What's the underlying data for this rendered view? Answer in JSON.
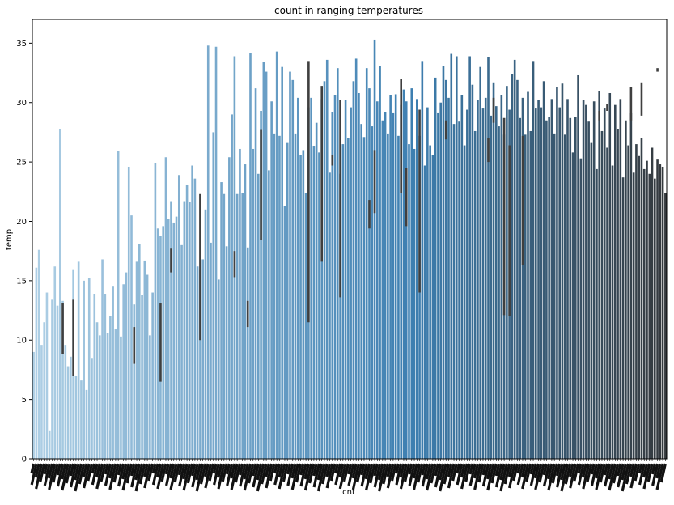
{
  "chart_data": {
    "type": "bar",
    "title": "count in ranging temperatures",
    "xlabel": "cnt",
    "ylabel": "temp",
    "ylim": [
      0,
      37
    ],
    "yticks": [
      0,
      5,
      10,
      15,
      20,
      25,
      30,
      35
    ],
    "grid": false,
    "legend": "none",
    "palette": {
      "light": "#aecfe5",
      "mid": "#3d7fb1",
      "dark": "#35393d"
    },
    "bar_count": 240,
    "x_tick_labels_note": "dense overlapping cnt values, unreadable",
    "values": [
      9.0,
      16.1,
      17.6,
      9.6,
      11.5,
      14.0,
      2.4,
      13.4,
      16.2,
      12.9,
      27.8,
      13.3,
      9.6,
      7.8,
      8.6,
      15.9,
      7.0,
      16.6,
      6.6,
      15.0,
      5.8,
      15.2,
      8.5,
      13.9,
      11.5,
      10.4,
      16.8,
      13.9,
      10.6,
      12.0,
      14.5,
      10.9,
      25.9,
      10.3,
      14.7,
      15.7,
      24.6,
      20.5,
      13.0,
      16.6,
      18.1,
      13.8,
      16.7,
      15.5,
      10.4,
      14.0,
      24.9,
      19.4,
      18.8,
      19.6,
      25.4,
      20.2,
      21.7,
      19.9,
      20.4,
      23.9,
      18.0,
      21.7,
      23.1,
      21.6,
      24.7,
      23.6,
      16.2,
      15.9,
      16.8,
      21.0,
      34.8,
      18.2,
      27.5,
      34.7,
      15.1,
      23.3,
      22.3,
      17.9,
      25.4,
      29.0,
      33.9,
      22.3,
      26.1,
      22.4,
      24.8,
      17.8,
      34.2,
      26.1,
      31.2,
      24.0,
      29.3,
      33.4,
      32.6,
      24.3,
      30.1,
      27.4,
      34.3,
      27.2,
      33.0,
      21.3,
      26.6,
      32.6,
      31.9,
      27.4,
      30.4,
      25.6,
      26.0,
      22.4,
      29.6,
      30.4,
      26.3,
      28.3,
      25.8,
      30.3,
      31.8,
      33.6,
      24.1,
      29.2,
      30.6,
      32.9,
      24.0,
      26.5,
      30.2,
      27.0,
      29.6,
      31.8,
      33.7,
      30.8,
      28.2,
      27.1,
      32.9,
      31.2,
      28.0,
      35.3,
      30.1,
      33.1,
      28.5,
      29.2,
      27.4,
      30.6,
      29.1,
      30.7,
      27.2,
      29.8,
      31.1,
      30.1,
      26.5,
      31.2,
      26.1,
      30.3,
      27.2,
      33.5,
      24.7,
      29.6,
      26.4,
      25.6,
      32.1,
      29.1,
      30.0,
      33.1,
      31.9,
      30.4,
      34.1,
      28.2,
      33.9,
      28.4,
      30.6,
      26.4,
      29.4,
      33.9,
      31.5,
      27.6,
      30.2,
      33.0,
      29.5,
      30.4,
      33.8,
      28.9,
      31.7,
      29.7,
      28.0,
      30.6,
      27.3,
      31.4,
      29.4,
      32.4,
      33.6,
      31.9,
      28.7,
      30.4,
      27.3,
      30.9,
      27.6,
      33.5,
      29.5,
      30.2,
      29.6,
      31.8,
      28.5,
      28.8,
      30.3,
      27.4,
      31.3,
      29.6,
      31.6,
      27.3,
      30.3,
      28.7,
      25.8,
      28.8,
      32.3,
      25.3,
      30.2,
      29.8,
      28.4,
      26.6,
      30.1,
      24.4,
      31.0,
      27.6,
      29.5,
      26.2,
      30.8,
      24.7,
      29.8,
      27.8,
      30.3,
      23.7,
      28.5,
      26.4,
      29.1,
      24.1,
      26.5,
      25.5,
      27.0,
      24.4,
      25.1,
      24.0,
      26.2,
      23.6,
      25.2,
      24.8,
      24.6,
      22.4
    ],
    "errors": [
      {
        "index": 11,
        "low": 8.8,
        "high": 13.1
      },
      {
        "index": 15,
        "low": 7.0,
        "high": 13.4
      },
      {
        "index": 38,
        "low": 8.0,
        "high": 11.1
      },
      {
        "index": 48,
        "low": 6.5,
        "high": 13.1
      },
      {
        "index": 52,
        "low": 15.7,
        "high": 17.7
      },
      {
        "index": 63,
        "low": 10.0,
        "high": 22.3
      },
      {
        "index": 76,
        "low": 15.3,
        "high": 17.5
      },
      {
        "index": 81,
        "low": 11.1,
        "high": 13.3
      },
      {
        "index": 86,
        "low": 18.4,
        "high": 27.7
      },
      {
        "index": 104,
        "low": 11.5,
        "high": 33.5
      },
      {
        "index": 109,
        "low": 16.6,
        "high": 31.4
      },
      {
        "index": 113,
        "low": 24.7,
        "high": 25.6
      },
      {
        "index": 116,
        "low": 13.6,
        "high": 30.2
      },
      {
        "index": 127,
        "low": 19.4,
        "high": 21.8
      },
      {
        "index": 129,
        "low": 20.7,
        "high": 26.0
      },
      {
        "index": 139,
        "low": 22.4,
        "high": 32.0
      },
      {
        "index": 141,
        "low": 19.6,
        "high": 24.5
      },
      {
        "index": 146,
        "low": 14.0,
        "high": 29.4
      },
      {
        "index": 156,
        "low": 26.9,
        "high": 28.5
      },
      {
        "index": 172,
        "low": 25.0,
        "high": 27.0
      },
      {
        "index": 174,
        "low": 28.3,
        "high": 30.4
      },
      {
        "index": 178,
        "low": 12.1,
        "high": 28.7
      },
      {
        "index": 180,
        "low": 12.0,
        "high": 26.4
      },
      {
        "index": 185,
        "low": 16.3,
        "high": 27.2
      },
      {
        "index": 214,
        "low": 28.5,
        "high": 29.3
      },
      {
        "index": 217,
        "low": 29.3,
        "high": 29.9
      },
      {
        "index": 226,
        "low": 28.5,
        "high": 31.3
      },
      {
        "index": 230,
        "low": 28.9,
        "high": 31.7
      },
      {
        "index": 236,
        "low": 32.6,
        "high": 32.9
      }
    ]
  }
}
